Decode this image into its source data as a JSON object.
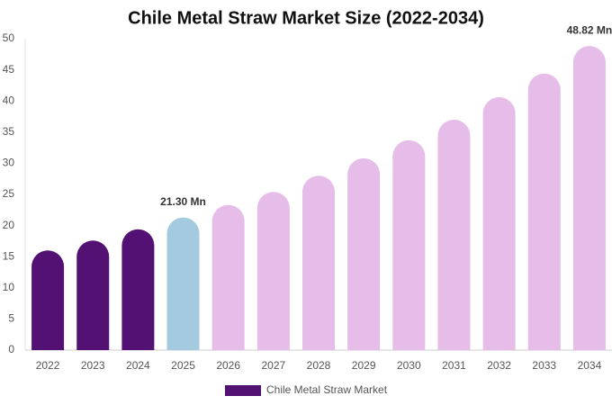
{
  "chart_data": {
    "type": "bar",
    "title": "Chile Metal Straw Market Size (2022-2034)",
    "categories": [
      "2022",
      "2023",
      "2024",
      "2025",
      "2026",
      "2027",
      "2028",
      "2029",
      "2030",
      "2031",
      "2032",
      "2033",
      "2034"
    ],
    "series": [
      {
        "name": "Chile Metal Straw Market",
        "color": "#541174",
        "values": [
          16.0,
          17.6,
          19.4,
          21.3,
          23.3,
          25.4,
          28.0,
          30.8,
          33.7,
          37.0,
          40.6,
          44.4,
          48.82
        ],
        "value_labels": [
          null,
          null,
          null,
          "21.30 Mn",
          null,
          null,
          null,
          null,
          null,
          null,
          null,
          null,
          "48.82 Mn"
        ],
        "bar_colors": [
          "#541174",
          "#541174",
          "#541174",
          "#a3cadf",
          "#e6bde8",
          "#e6bde8",
          "#e6bde8",
          "#e6bde8",
          "#e6bde8",
          "#e6bde8",
          "#e6bde8",
          "#e6bde8",
          "#e6bde8"
        ]
      }
    ],
    "ylim": [
      0,
      50
    ],
    "yticks": [
      0,
      5,
      10,
      15,
      20,
      25,
      30,
      35,
      40,
      45,
      50
    ],
    "grid": false
  }
}
